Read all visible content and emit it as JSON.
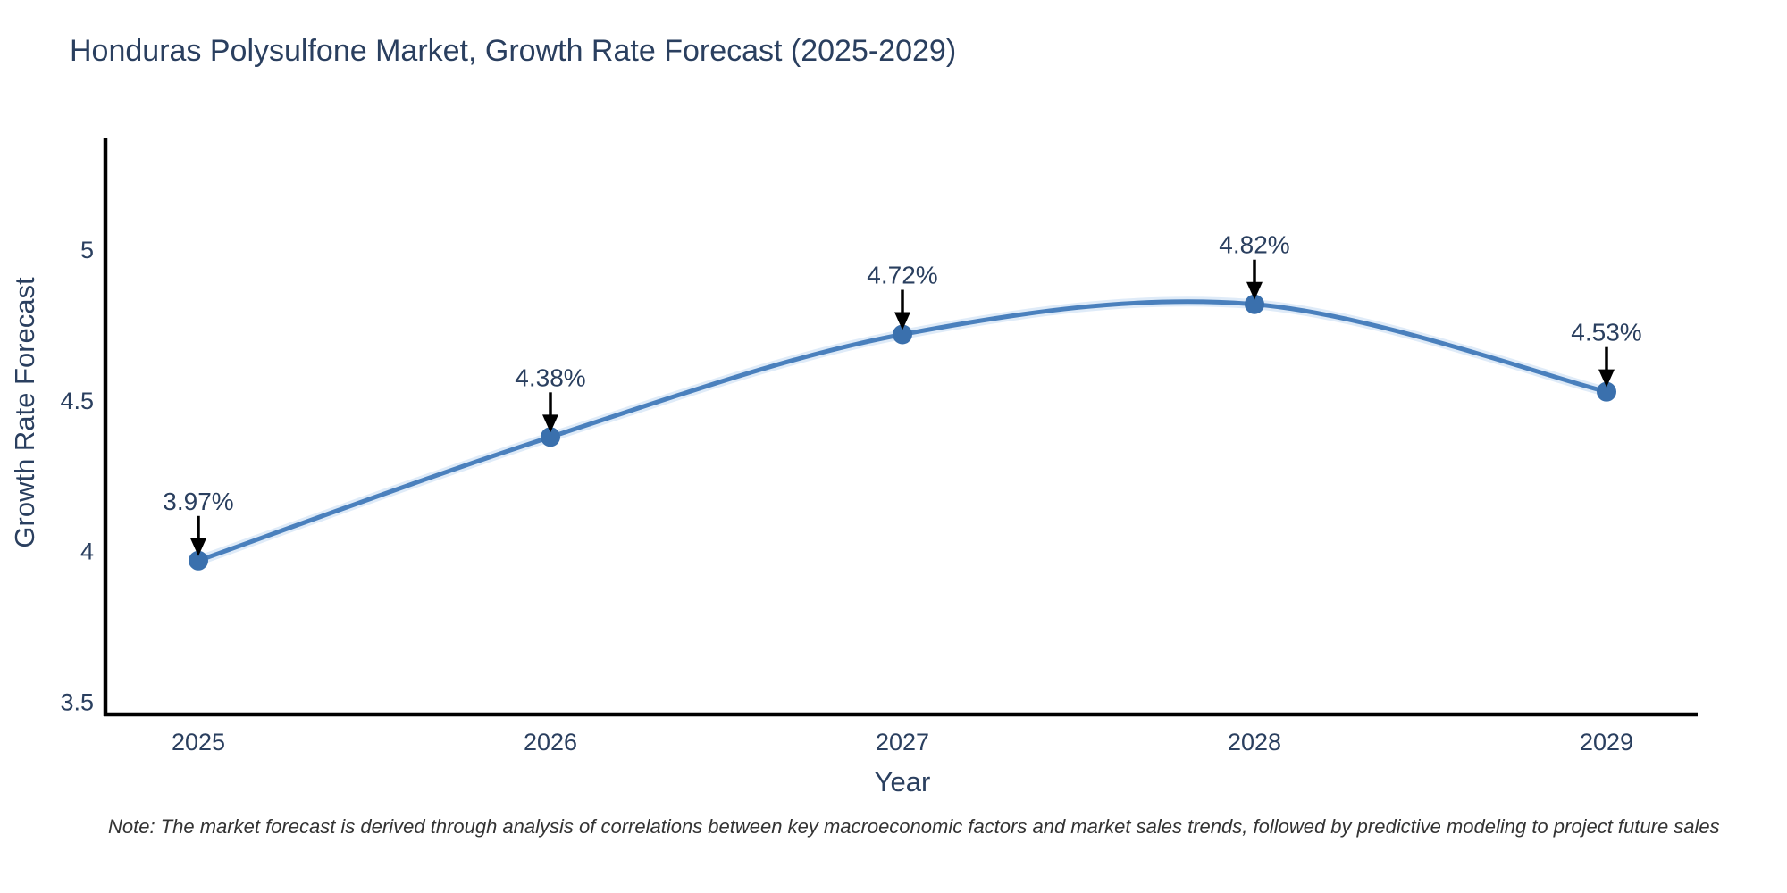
{
  "chart_data": {
    "type": "line",
    "line_shape": "spline",
    "title": "Honduras Polysulfone Market, Growth Rate Forecast (2025-2029)",
    "xlabel": "Year",
    "ylabel": "Growth Rate Forecast",
    "categories": [
      2025,
      2026,
      2027,
      2028,
      2029
    ],
    "xtick_labels": [
      "2025",
      "2026",
      "2027",
      "2028",
      "2029"
    ],
    "values": [
      3.97,
      4.38,
      4.72,
      4.82,
      4.53
    ],
    "point_labels": [
      "3.97%",
      "4.38%",
      "4.72%",
      "4.82%",
      "4.53%"
    ],
    "yticks": [
      3.5,
      4,
      4.5,
      5
    ],
    "ytick_labels": [
      "3.5",
      "4",
      "4.5",
      "5"
    ],
    "ylim": [
      3.46,
      5.37
    ],
    "grid": false,
    "legend": false,
    "annotations": "each data point labeled with percentage value and a black down-arrow",
    "colors": {
      "line": "#4a80bd",
      "line_halo": "#d9e8f7",
      "marker": "#3a70ad",
      "axis": "#000000",
      "text": "#2a3f5f",
      "arrow": "#000000"
    }
  },
  "footnote": "Note: The market forecast is derived through analysis of correlations between key macroeconomic factors and market sales trends, followed by predictive modeling to project future sales"
}
